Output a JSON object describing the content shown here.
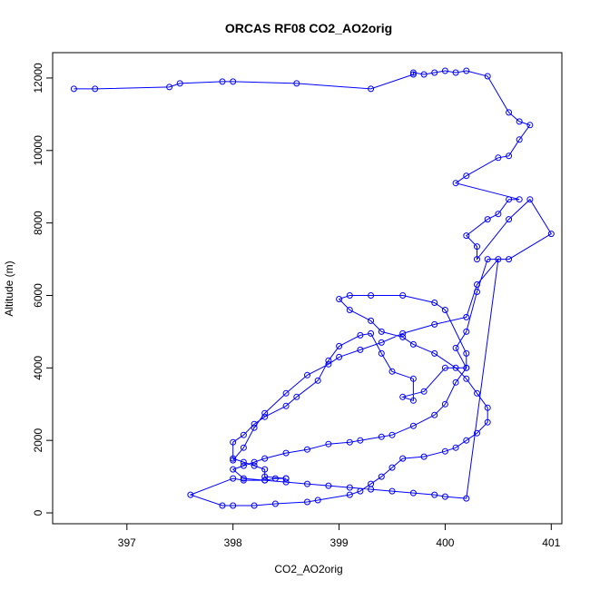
{
  "chart_data": {
    "type": "line",
    "title": "ORCAS RF08 CO2_AO2orig",
    "xlabel": "CO2_AO2orig",
    "ylabel": "Altitude (m)",
    "xlim": [
      396.3,
      401.1
    ],
    "ylim": [
      -300,
      12700
    ],
    "xticks": [
      397,
      398,
      399,
      400,
      401
    ],
    "yticks": [
      0,
      2000,
      4000,
      6000,
      8000,
      10000,
      12000
    ],
    "grid": false,
    "legend": "none",
    "color": "#0000ff",
    "marker": "open-circle",
    "series": [
      {
        "x": [
          396.5,
          396.7,
          397.4,
          397.5,
          397.9,
          398.0,
          398.6,
          399.3,
          399.7,
          399.7,
          399.8,
          399.9,
          400.0,
          400.1,
          400.2,
          400.4,
          400.6,
          400.7,
          400.8,
          400.7,
          400.6,
          400.5,
          400.2,
          400.1,
          400.7,
          400.6,
          400.5,
          400.4,
          400.2,
          400.3,
          400.3,
          400.6,
          400.8,
          401.0,
          400.6,
          400.4,
          400.3,
          400.2,
          400.1,
          400.2,
          400.0,
          399.8,
          399.6,
          399.7,
          399.7,
          399.5,
          399.4,
          399.3,
          399.2,
          399.0,
          398.9,
          398.8,
          398.6,
          398.5,
          398.3,
          398.2,
          398.1,
          398.0,
          398.0,
          398.1,
          398.2,
          398.3,
          398.3,
          398.5,
          398.5,
          398.4,
          398.3,
          398.1,
          398.0,
          397.6,
          397.9,
          398.0,
          398.2,
          398.4,
          398.7,
          398.8,
          399.1,
          399.2,
          399.3,
          399.4,
          399.5,
          399.6,
          399.8,
          400.0,
          400.1,
          400.2,
          400.3,
          400.4,
          400.4,
          400.3,
          400.2,
          400.1,
          399.9,
          399.7,
          399.6,
          399.4,
          399.3,
          399.1,
          399.0,
          399.1,
          399.3,
          399.6,
          399.9,
          400.0,
          400.2,
          400.2,
          400.1,
          400.0,
          399.9,
          399.7,
          399.5,
          399.4,
          399.2,
          399.1,
          398.9,
          398.7,
          398.5,
          398.3,
          398.2,
          398.1,
          398.0,
          398.1,
          398.3,
          398.5,
          398.7,
          398.9,
          399.1,
          399.3,
          399.5,
          399.7,
          399.9,
          400.0,
          400.2,
          400.5,
          400.3,
          400.2,
          399.9,
          399.6,
          399.4,
          399.2,
          399.0,
          398.9,
          398.7,
          398.5,
          398.3,
          398.2,
          398.1,
          398.0
        ],
        "y": [
          11700,
          11700,
          11750,
          11850,
          11900,
          11900,
          11850,
          11700,
          12100,
          12150,
          12100,
          12150,
          12200,
          12150,
          12200,
          12050,
          11050,
          10800,
          10700,
          10300,
          9850,
          9800,
          9300,
          9100,
          8650,
          8650,
          8250,
          8100,
          7650,
          7350,
          7000,
          8100,
          8650,
          7700,
          7000,
          7000,
          6100,
          5000,
          4550,
          4000,
          4000,
          3350,
          3200,
          3100,
          3700,
          3900,
          4400,
          4950,
          4900,
          4600,
          4200,
          3650,
          3200,
          2950,
          2650,
          2450,
          2150,
          1950,
          1500,
          1400,
          1300,
          1200,
          1000,
          950,
          950,
          950,
          900,
          900,
          950,
          500,
          200,
          200,
          200,
          250,
          300,
          350,
          500,
          600,
          800,
          1000,
          1250,
          1500,
          1550,
          1700,
          1800,
          2000,
          2200,
          2500,
          2900,
          3300,
          3700,
          4000,
          4400,
          4650,
          4850,
          5000,
          5300,
          5600,
          5900,
          6000,
          6000,
          6000,
          5800,
          5600,
          4400,
          4000,
          3600,
          3000,
          2700,
          2400,
          2150,
          2100,
          2000,
          1950,
          1900,
          1750,
          1650,
          1500,
          1400,
          1300,
          1200,
          950,
          900,
          850,
          800,
          750,
          700,
          650,
          600,
          550,
          500,
          450,
          400,
          7000,
          6300,
          5400,
          5200,
          4950,
          4700,
          4500,
          4300,
          4100,
          3800,
          3300,
          2750,
          2350,
          1800,
          1450
        ]
      }
    ]
  }
}
